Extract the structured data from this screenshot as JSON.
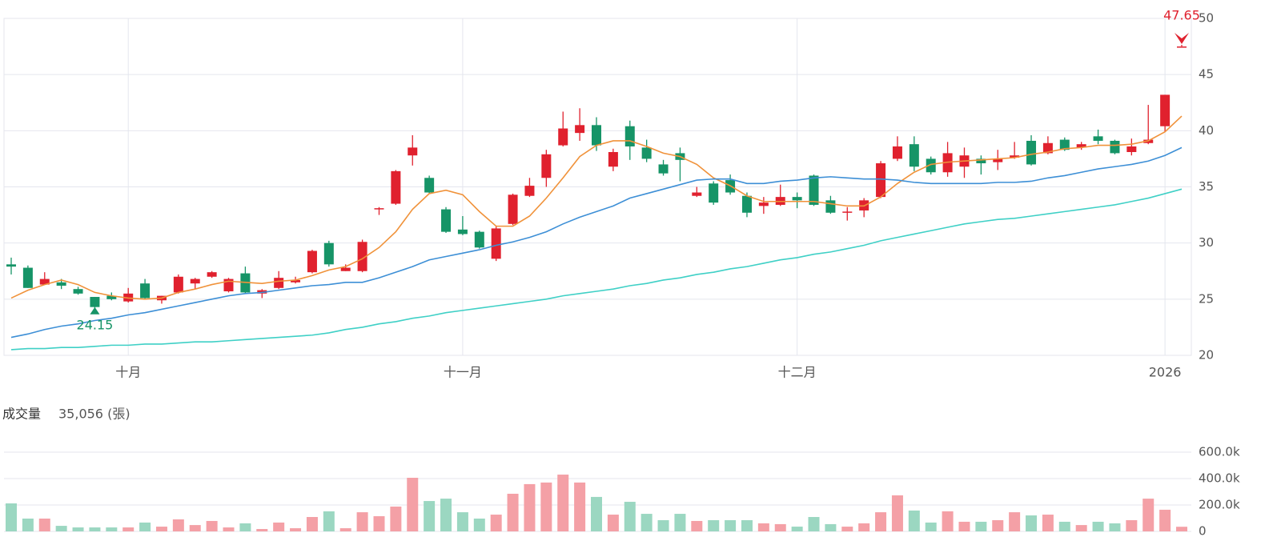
{
  "chart_data": [
    {
      "type": "candlestick",
      "categories": [
        null,
        null,
        null,
        null,
        null,
        null,
        null,
        "十月",
        null,
        null,
        null,
        null,
        null,
        null,
        null,
        null,
        null,
        null,
        null,
        null,
        null,
        null,
        null,
        null,
        null,
        null,
        null,
        "十一月",
        null,
        null,
        null,
        null,
        null,
        null,
        null,
        null,
        null,
        null,
        null,
        null,
        null,
        null,
        null,
        null,
        null,
        null,
        null,
        "十二月",
        null,
        null,
        null,
        null,
        null,
        null,
        null,
        null,
        null,
        null,
        null,
        null,
        null,
        null,
        null,
        null,
        null,
        null,
        null,
        null,
        null,
        "2026",
        null
      ],
      "open": [
        28.1,
        27.8,
        26.3,
        26.5,
        25.9,
        25.2,
        25.3,
        24.8,
        26.4,
        24.9,
        25.6,
        26.4,
        27.0,
        25.7,
        27.3,
        25.5,
        26.0,
        26.5,
        27.4,
        30.0,
        27.5,
        27.5,
        33.0,
        33.5,
        37.8,
        35.8,
        33.0,
        31.2,
        31.0,
        28.6,
        31.7,
        34.2,
        35.8,
        38.7,
        39.8,
        40.5,
        36.8,
        40.4,
        38.5,
        37.0,
        38.0,
        34.2,
        35.3,
        35.6,
        34.2,
        33.3,
        33.4,
        34.1,
        36.0,
        33.8,
        32.7,
        32.9,
        34.1,
        37.5,
        38.8,
        37.5,
        36.3,
        36.8,
        37.5,
        37.2,
        37.6,
        39.1,
        38.0,
        39.2,
        38.5,
        39.5,
        39.1,
        38.1,
        38.9,
        40.4,
        47.5
      ],
      "high": [
        28.7,
        28.0,
        27.4,
        26.8,
        26.1,
        25.2,
        25.6,
        26.0,
        26.8,
        25.3,
        27.2,
        26.9,
        27.5,
        26.9,
        27.9,
        25.9,
        27.5,
        27.0,
        29.4,
        30.2,
        28.1,
        30.3,
        33.2,
        36.5,
        39.6,
        36.0,
        33.2,
        32.4,
        31.1,
        31.5,
        34.4,
        35.8,
        38.3,
        41.7,
        42.0,
        41.2,
        38.4,
        40.9,
        39.2,
        37.4,
        38.5,
        35.0,
        35.5,
        36.1,
        34.5,
        34.1,
        35.2,
        34.5,
        36.1,
        34.2,
        33.2,
        34.0,
        37.3,
        39.5,
        39.5,
        37.7,
        39.0,
        38.5,
        37.8,
        38.3,
        39.0,
        39.6,
        39.5,
        39.4,
        39.0,
        40.1,
        39.2,
        39.3,
        42.3,
        43.2,
        47.65
      ],
      "low": [
        27.2,
        26.0,
        26.3,
        25.9,
        25.4,
        24.15,
        24.9,
        24.7,
        25.0,
        24.6,
        25.5,
        25.9,
        26.9,
        25.6,
        25.5,
        25.1,
        25.9,
        26.4,
        27.3,
        27.9,
        27.5,
        27.4,
        32.5,
        33.4,
        36.9,
        34.4,
        30.9,
        30.7,
        29.5,
        28.4,
        31.6,
        34.1,
        35.0,
        38.6,
        39.1,
        38.2,
        36.4,
        37.4,
        37.2,
        36.0,
        35.5,
        34.1,
        33.4,
        34.3,
        32.3,
        32.6,
        33.3,
        33.1,
        33.3,
        32.6,
        32.0,
        32.3,
        34.0,
        37.3,
        36.4,
        36.1,
        35.9,
        35.8,
        36.1,
        36.5,
        37.5,
        36.9,
        37.9,
        38.2,
        38.3,
        38.8,
        37.9,
        37.8,
        38.8,
        39.9,
        47.5
      ],
      "close": [
        27.9,
        26.0,
        26.8,
        26.2,
        25.5,
        24.3,
        25.0,
        25.5,
        25.1,
        25.3,
        27.0,
        26.8,
        27.4,
        26.8,
        25.6,
        25.8,
        26.9,
        26.7,
        29.3,
        28.1,
        27.8,
        30.1,
        33.1,
        36.4,
        38.5,
        34.5,
        31.0,
        30.8,
        29.6,
        31.3,
        34.3,
        35.1,
        37.9,
        40.2,
        40.5,
        38.7,
        38.1,
        38.6,
        37.5,
        36.2,
        37.4,
        34.5,
        33.6,
        34.5,
        32.7,
        33.6,
        34.1,
        33.8,
        33.4,
        32.7,
        32.8,
        33.8,
        37.1,
        38.6,
        36.8,
        36.3,
        38.0,
        37.8,
        37.1,
        37.5,
        37.8,
        37.0,
        38.9,
        38.3,
        38.8,
        39.1,
        38.0,
        38.6,
        39.2,
        43.2,
        47.5
      ],
      "up_color": "#e0212e",
      "down_color": "#169467",
      "series": [
        {
          "color": "#f0923a",
          "values": [
            25.1,
            25.8,
            26.3,
            26.7,
            26.3,
            25.6,
            25.3,
            25.1,
            25.0,
            25.1,
            25.6,
            25.9,
            26.3,
            26.6,
            26.5,
            26.4,
            26.6,
            26.7,
            27.1,
            27.6,
            27.9,
            28.6,
            29.6,
            31.0,
            33.0,
            34.4,
            34.7,
            34.3,
            32.8,
            31.5,
            31.5,
            32.4,
            34.0,
            35.8,
            37.7,
            38.7,
            39.1,
            39.1,
            38.6,
            38.0,
            37.7,
            37.0,
            35.8,
            35.1,
            34.2,
            33.7,
            33.7,
            33.7,
            33.7,
            33.5,
            33.3,
            33.3,
            34.1,
            35.3,
            36.3,
            37.0,
            37.2,
            37.3,
            37.4,
            37.5,
            37.6,
            37.9,
            38.1,
            38.4,
            38.5,
            38.7,
            38.7,
            38.8,
            39.1,
            39.9,
            41.3
          ]
        },
        {
          "color": "#3d8fd6",
          "values": [
            21.6,
            21.9,
            22.3,
            22.6,
            22.8,
            23.1,
            23.3,
            23.6,
            23.8,
            24.1,
            24.4,
            24.7,
            25.0,
            25.3,
            25.5,
            25.6,
            25.8,
            26.0,
            26.2,
            26.3,
            26.5,
            26.5,
            26.9,
            27.4,
            27.9,
            28.5,
            28.8,
            29.1,
            29.4,
            29.8,
            30.1,
            30.5,
            31.0,
            31.7,
            32.3,
            32.8,
            33.3,
            34.0,
            34.4,
            34.8,
            35.2,
            35.6,
            35.7,
            35.7,
            35.3,
            35.3,
            35.5,
            35.6,
            35.8,
            35.9,
            35.8,
            35.7,
            35.7,
            35.6,
            35.4,
            35.3,
            35.3,
            35.3,
            35.3,
            35.4,
            35.4,
            35.5,
            35.8,
            36.0,
            36.3,
            36.6,
            36.8,
            37.0,
            37.3,
            37.8,
            38.5
          ]
        },
        {
          "color": "#3fd0c6",
          "values": [
            20.5,
            20.6,
            20.6,
            20.7,
            20.7,
            20.8,
            20.9,
            20.9,
            21.0,
            21.0,
            21.1,
            21.2,
            21.2,
            21.3,
            21.4,
            21.5,
            21.6,
            21.7,
            21.8,
            22.0,
            22.3,
            22.5,
            22.8,
            23.0,
            23.3,
            23.5,
            23.8,
            24.0,
            24.2,
            24.4,
            24.6,
            24.8,
            25.0,
            25.3,
            25.5,
            25.7,
            25.9,
            26.2,
            26.4,
            26.7,
            26.9,
            27.2,
            27.4,
            27.7,
            27.9,
            28.2,
            28.5,
            28.7,
            29.0,
            29.2,
            29.5,
            29.8,
            30.2,
            30.5,
            30.8,
            31.1,
            31.4,
            31.7,
            31.9,
            32.1,
            32.2,
            32.4,
            32.6,
            32.8,
            33.0,
            33.2,
            33.4,
            33.7,
            34.0,
            34.4,
            34.8
          ]
        }
      ],
      "min_label": 24.15,
      "max_label": 47.65,
      "ylim": [
        20,
        50
      ],
      "yticks": [
        20,
        25,
        30,
        35,
        40,
        45,
        50
      ],
      "grid": true
    },
    {
      "type": "bar",
      "title": "成交量",
      "subtitle": "35,056 (張)",
      "values": [
        212000,
        97000,
        97000,
        42000,
        30000,
        30000,
        30000,
        30000,
        67000,
        36000,
        91000,
        48000,
        79000,
        30000,
        61000,
        18000,
        67000,
        24000,
        109000,
        152000,
        24000,
        145000,
        115000,
        188000,
        406000,
        230000,
        248000,
        145000,
        97000,
        127000,
        285000,
        358000,
        370000,
        430000,
        370000,
        261000,
        127000,
        224000,
        133000,
        85000,
        133000,
        79000,
        85000,
        85000,
        85000,
        61000,
        55000,
        36000,
        109000,
        55000,
        36000,
        61000,
        145000,
        273000,
        158000,
        67000,
        152000,
        73000,
        73000,
        85000,
        145000,
        121000,
        127000,
        73000,
        48000,
        73000,
        61000,
        85000,
        248000,
        164000,
        35056
      ],
      "up_color": "#f4a0a6",
      "down_color": "#9bd7c1",
      "ylim": [
        0,
        600000
      ],
      "yticks": [
        0,
        {
          "value": 200000,
          "label": "200.0k"
        },
        {
          "value": 400000,
          "label": "400.0k"
        },
        {
          "value": 600000,
          "label": "600.0k"
        }
      ],
      "grid": true
    }
  ]
}
